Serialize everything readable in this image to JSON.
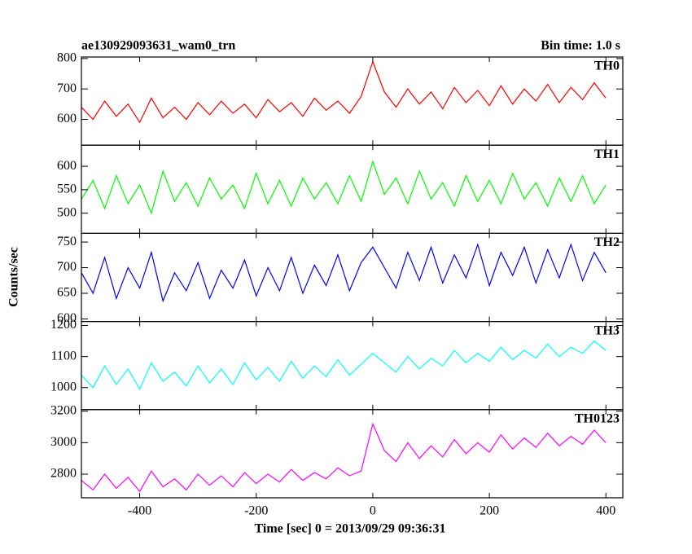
{
  "chart_data": {
    "type": "line",
    "title": "ae130929093631_wam0_trn",
    "subtitle": "Bin time: 1.0 s",
    "ylabel": "Counts/sec",
    "xlabel": "Time [sec] 0 = 2013/09/29 09:36:31",
    "xlim": [
      -500,
      429
    ],
    "xticks": [
      -400,
      -200,
      0,
      200,
      400
    ],
    "x": [
      -500,
      -480,
      -460,
      -440,
      -420,
      -400,
      -380,
      -360,
      -340,
      -320,
      -300,
      -280,
      -260,
      -240,
      -220,
      -200,
      -180,
      -160,
      -140,
      -120,
      -100,
      -80,
      -60,
      -40,
      -20,
      0,
      20,
      40,
      60,
      80,
      100,
      120,
      140,
      160,
      180,
      200,
      220,
      240,
      260,
      280,
      300,
      320,
      340,
      360,
      380,
      400
    ],
    "panels": [
      {
        "name": "TH0",
        "color": "#ff0000",
        "ylim": [
          515,
          805
        ],
        "yticks": [
          600,
          700,
          800
        ],
        "values": [
          640,
          600,
          660,
          610,
          650,
          590,
          670,
          605,
          640,
          600,
          655,
          615,
          660,
          620,
          650,
          605,
          665,
          625,
          655,
          610,
          670,
          630,
          660,
          620,
          675,
          790,
          690,
          640,
          700,
          650,
          690,
          635,
          705,
          655,
          695,
          645,
          710,
          650,
          700,
          660,
          715,
          655,
          705,
          665,
          720,
          670
        ]
      },
      {
        "name": "TH1",
        "color": "#00ff00",
        "ylim": [
          457,
          645
        ],
        "yticks": [
          500,
          550,
          600
        ],
        "values": [
          530,
          570,
          510,
          580,
          520,
          560,
          500,
          590,
          525,
          565,
          515,
          575,
          530,
          560,
          510,
          585,
          520,
          570,
          515,
          575,
          530,
          565,
          520,
          580,
          525,
          610,
          540,
          575,
          520,
          590,
          530,
          565,
          515,
          580,
          525,
          570,
          520,
          585,
          530,
          565,
          515,
          575,
          525,
          580,
          520,
          560
        ]
      },
      {
        "name": "TH2",
        "color": "#0000ff",
        "ylim": [
          595,
          767
        ],
        "yticks": [
          600,
          650,
          700,
          750
        ],
        "values": [
          690,
          650,
          720,
          640,
          700,
          660,
          730,
          635,
          690,
          655,
          710,
          640,
          695,
          660,
          715,
          645,
          700,
          655,
          720,
          650,
          705,
          665,
          725,
          655,
          710,
          740,
          700,
          660,
          730,
          675,
          740,
          670,
          725,
          680,
          745,
          665,
          730,
          685,
          740,
          670,
          735,
          680,
          745,
          675,
          730,
          690
        ]
      },
      {
        "name": "TH3",
        "color": "#00ffff",
        "ylim": [
          929,
          1213
        ],
        "yticks": [
          1000,
          1100,
          1200
        ],
        "values": [
          1040,
          1000,
          1070,
          1010,
          1060,
          995,
          1080,
          1020,
          1050,
          1005,
          1070,
          1015,
          1060,
          1010,
          1080,
          1025,
          1065,
          1020,
          1085,
          1030,
          1070,
          1035,
          1090,
          1040,
          1075,
          1110,
          1080,
          1050,
          1100,
          1060,
          1095,
          1070,
          1120,
          1080,
          1110,
          1085,
          1130,
          1090,
          1120,
          1095,
          1140,
          1100,
          1130,
          1110,
          1150,
          1120
        ]
      },
      {
        "name": "TH0123",
        "color": "#ff00ff",
        "ylim": [
          2650,
          3210
        ],
        "yticks": [
          2800,
          3000,
          3200
        ],
        "values": [
          2760,
          2700,
          2800,
          2710,
          2780,
          2690,
          2820,
          2720,
          2770,
          2700,
          2800,
          2730,
          2790,
          2720,
          2810,
          2740,
          2800,
          2750,
          2830,
          2760,
          2810,
          2770,
          2840,
          2790,
          2820,
          3120,
          2950,
          2880,
          3000,
          2900,
          2980,
          2910,
          3020,
          2930,
          3000,
          2940,
          3050,
          2960,
          3030,
          2970,
          3060,
          2980,
          3040,
          2990,
          3080,
          3000
        ]
      }
    ]
  }
}
